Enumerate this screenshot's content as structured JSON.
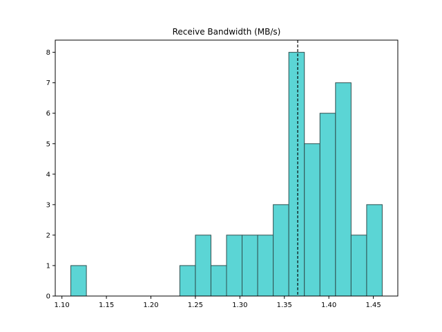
{
  "chart_data": {
    "type": "bar",
    "title": "Receive Bandwidth (MB/s)",
    "xlabel": "",
    "ylabel": "",
    "xlim": [
      1.0925,
      1.4775
    ],
    "ylim": [
      0,
      8.4
    ],
    "bin_width": 0.0175,
    "bins": [
      {
        "start": 1.11,
        "end": 1.1275,
        "count": 1
      },
      {
        "start": 1.2325,
        "end": 1.25,
        "count": 1
      },
      {
        "start": 1.25,
        "end": 1.2675,
        "count": 2
      },
      {
        "start": 1.2675,
        "end": 1.285,
        "count": 1
      },
      {
        "start": 1.285,
        "end": 1.3025,
        "count": 2
      },
      {
        "start": 1.3025,
        "end": 1.32,
        "count": 2
      },
      {
        "start": 1.32,
        "end": 1.3375,
        "count": 2
      },
      {
        "start": 1.3375,
        "end": 1.355,
        "count": 3
      },
      {
        "start": 1.355,
        "end": 1.3725,
        "count": 8
      },
      {
        "start": 1.3725,
        "end": 1.39,
        "count": 5
      },
      {
        "start": 1.39,
        "end": 1.4075,
        "count": 6
      },
      {
        "start": 1.4075,
        "end": 1.425,
        "count": 7
      },
      {
        "start": 1.425,
        "end": 1.4425,
        "count": 2
      },
      {
        "start": 1.4425,
        "end": 1.46,
        "count": 3
      }
    ],
    "xticks": [
      {
        "value": 1.1,
        "label": "1.10"
      },
      {
        "value": 1.15,
        "label": "1.15"
      },
      {
        "value": 1.2,
        "label": "1.20"
      },
      {
        "value": 1.25,
        "label": "1.25"
      },
      {
        "value": 1.3,
        "label": "1.30"
      },
      {
        "value": 1.35,
        "label": "1.35"
      },
      {
        "value": 1.4,
        "label": "1.40"
      },
      {
        "value": 1.45,
        "label": "1.45"
      }
    ],
    "yticks": [
      {
        "value": 0,
        "label": "0"
      },
      {
        "value": 1,
        "label": "1"
      },
      {
        "value": 2,
        "label": "2"
      },
      {
        "value": 3,
        "label": "3"
      },
      {
        "value": 4,
        "label": "4"
      },
      {
        "value": 5,
        "label": "5"
      },
      {
        "value": 6,
        "label": "6"
      },
      {
        "value": 7,
        "label": "7"
      },
      {
        "value": 8,
        "label": "8"
      }
    ],
    "reference_line": {
      "x": 1.365,
      "style": "dashed",
      "color": "#000000"
    },
    "bar_color": "#5bd5d5",
    "bar_edge_color": "#2f4f4f",
    "grid": false,
    "legend": "none"
  }
}
